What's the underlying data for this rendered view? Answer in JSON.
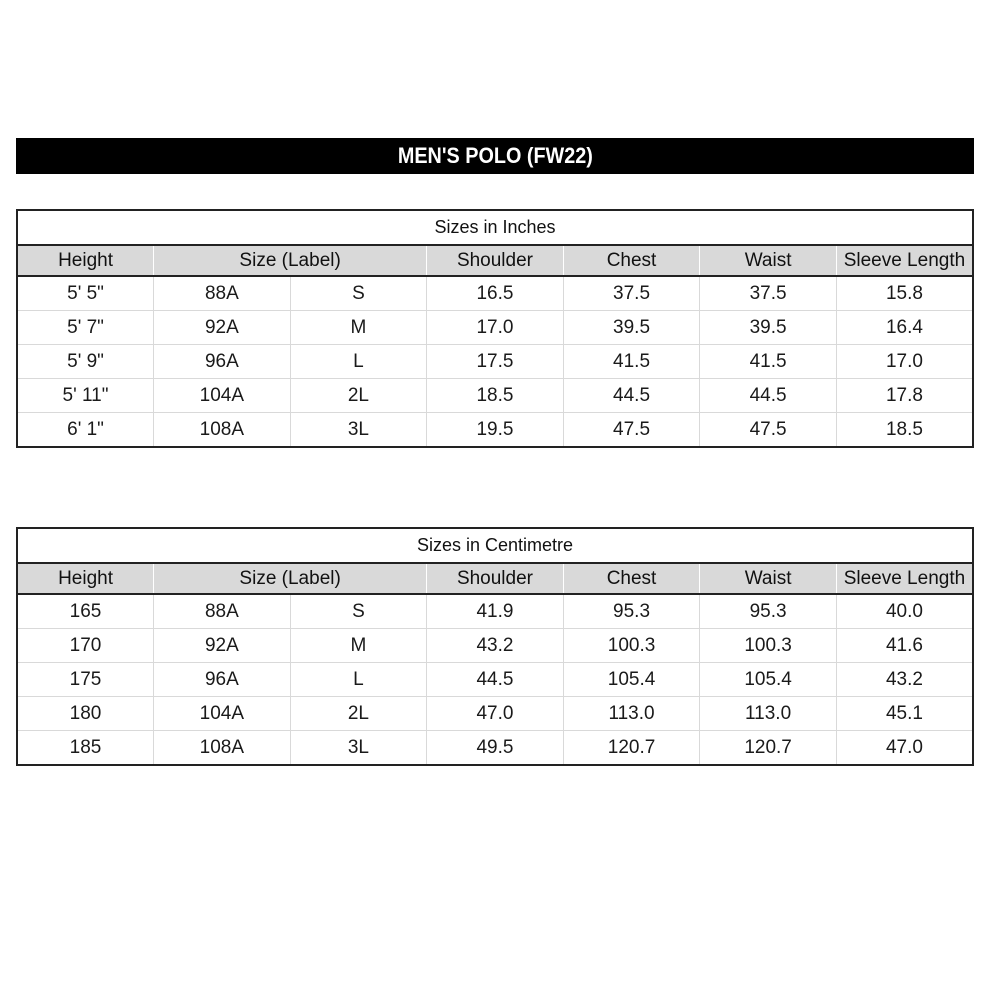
{
  "banner": {
    "title": "MEN'S POLO (FW22)"
  },
  "columns": [
    "Height",
    "Size (Label)",
    "Shoulder",
    "Chest",
    "Waist",
    "Sleeve Length"
  ],
  "tables": [
    {
      "title": "Sizes in Inches",
      "rows": [
        [
          "5' 5\"",
          "88A",
          "S",
          "16.5",
          "37.5",
          "37.5",
          "15.8"
        ],
        [
          "5' 7\"",
          "92A",
          "M",
          "17.0",
          "39.5",
          "39.5",
          "16.4"
        ],
        [
          "5' 9\"",
          "96A",
          "L",
          "17.5",
          "41.5",
          "41.5",
          "17.0"
        ],
        [
          "5' 11\"",
          "104A",
          "2L",
          "18.5",
          "44.5",
          "44.5",
          "17.8"
        ],
        [
          "6' 1\"",
          "108A",
          "3L",
          "19.5",
          "47.5",
          "47.5",
          "18.5"
        ]
      ]
    },
    {
      "title": "Sizes in Centimetre",
      "rows": [
        [
          "165",
          "88A",
          "S",
          "41.9",
          "95.3",
          "95.3",
          "40.0"
        ],
        [
          "170",
          "92A",
          "M",
          "43.2",
          "100.3",
          "100.3",
          "41.6"
        ],
        [
          "175",
          "96A",
          "L",
          "44.5",
          "105.4",
          "105.4",
          "43.2"
        ],
        [
          "180",
          "104A",
          "2L",
          "47.0",
          "113.0",
          "113.0",
          "45.1"
        ],
        [
          "185",
          "108A",
          "3L",
          "49.5",
          "120.7",
          "120.7",
          "47.0"
        ]
      ]
    }
  ],
  "colors": {
    "banner_bg": "#000000",
    "banner_fg": "#ffffff",
    "header_bg": "#d9d9d9",
    "border_dark": "#222222",
    "border_light": "#d9d9d9",
    "page_bg": "#ffffff"
  }
}
